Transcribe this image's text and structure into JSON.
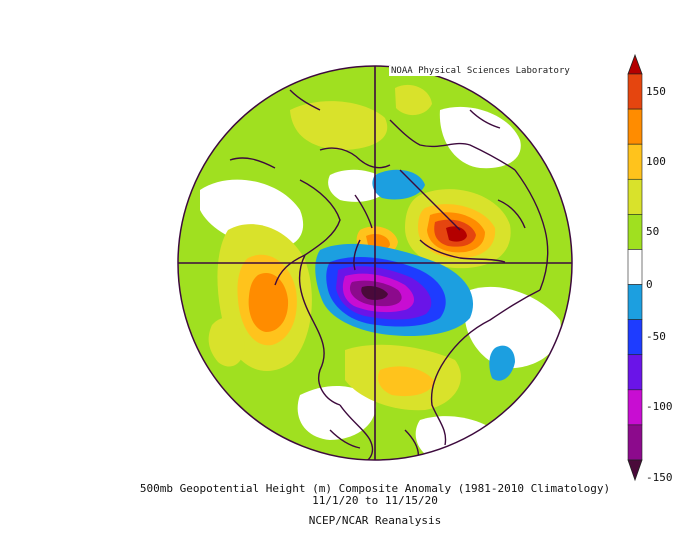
{
  "credit": "NOAA Physical Sciences Laboratory",
  "caption": {
    "line1": "500mb Geopotential Height (m) Composite Anomaly (1981-2010 Climatology)",
    "line2": "11/1/20  to 11/15/20",
    "line3": "NCEP/NCAR Reanalysis"
  },
  "colorbar": {
    "ticks": [
      "150",
      "100",
      "50",
      "0",
      "-50",
      "-100",
      "-150"
    ],
    "bands": [
      {
        "label": "above 150",
        "color": "#b40000"
      },
      {
        "label": "125 to 150",
        "color": "#e5450f"
      },
      {
        "label": "100 to 125",
        "color": "#ff8c00"
      },
      {
        "label": "75 to 100",
        "color": "#ffc31c"
      },
      {
        "label": "50 to 75",
        "color": "#d9e22b"
      },
      {
        "label": "25 to 50",
        "color": "#a0e020"
      },
      {
        "label": "-25 to 25",
        "color": "#ffffff"
      },
      {
        "label": "-50 to -25",
        "color": "#1c9fe0"
      },
      {
        "label": "-75 to -50",
        "color": "#1e3cff"
      },
      {
        "label": "-100 to -75",
        "color": "#6a14e8"
      },
      {
        "label": "-125 to -100",
        "color": "#c80dd2"
      },
      {
        "label": "-150 to -125",
        "color": "#8c0a8c"
      },
      {
        "label": "below -150",
        "color": "#4a0a3a"
      }
    ]
  }
}
